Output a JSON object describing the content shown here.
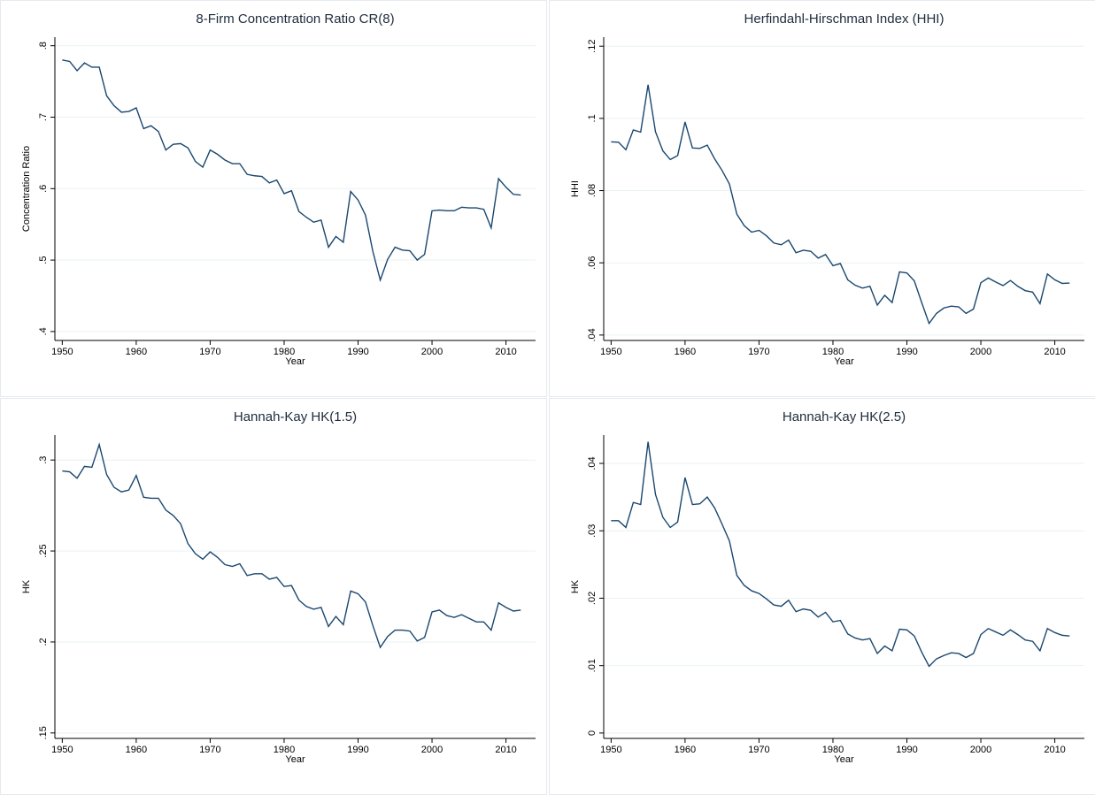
{
  "chart_data": [
    {
      "type": "line",
      "title": "8-Firm Concentration Ratio CR(8)",
      "xlabel": "Year",
      "ylabel": "Concentration Ratio",
      "x": [
        1950,
        1951,
        1952,
        1953,
        1954,
        1955,
        1956,
        1957,
        1958,
        1959,
        1960,
        1961,
        1962,
        1963,
        1964,
        1965,
        1966,
        1967,
        1968,
        1969,
        1970,
        1971,
        1972,
        1973,
        1974,
        1975,
        1976,
        1977,
        1978,
        1979,
        1980,
        1981,
        1982,
        1983,
        1984,
        1985,
        1986,
        1987,
        1988,
        1989,
        1990,
        1991,
        1992,
        1993,
        1994,
        1995,
        1996,
        1997,
        1998,
        1999,
        2000,
        2001,
        2002,
        2003,
        2004,
        2005,
        2006,
        2007,
        2008,
        2009,
        2010,
        2011,
        2012
      ],
      "series": [
        {
          "color": "#1a476f",
          "values": [
            0.78,
            0.778,
            0.765,
            0.776,
            0.77,
            0.77,
            0.73,
            0.716,
            0.707,
            0.708,
            0.713,
            0.684,
            0.688,
            0.68,
            0.654,
            0.662,
            0.663,
            0.657,
            0.638,
            0.63,
            0.654,
            0.648,
            0.64,
            0.635,
            0.635,
            0.62,
            0.618,
            0.617,
            0.608,
            0.612,
            0.593,
            0.597,
            0.568,
            0.56,
            0.553,
            0.556,
            0.518,
            0.533,
            0.525,
            0.596,
            0.584,
            0.563,
            0.512,
            0.472,
            0.501,
            0.518,
            0.514,
            0.513,
            0.5,
            0.508,
            0.569,
            0.57,
            0.569,
            0.569,
            0.574,
            0.573,
            0.573,
            0.571,
            0.545,
            0.614,
            0.602,
            0.592,
            0.591
          ]
        }
      ],
      "xlim": [
        1949,
        2014
      ],
      "xticks": [
        1950,
        1960,
        1970,
        1980,
        1990,
        2000,
        2010
      ],
      "ylim": [
        0.3875,
        0.812
      ],
      "yticks": [
        {
          "value": 0.4,
          "label": ".4"
        },
        {
          "value": 0.5,
          "label": ".5"
        },
        {
          "value": 0.6,
          "label": ".6"
        },
        {
          "value": 0.7,
          "label": ".7"
        },
        {
          "value": 0.8,
          "label": ".8"
        }
      ],
      "grid": true
    },
    {
      "type": "line",
      "title": "Herfindahl-Hirschman Index (HHI)",
      "xlabel": "Year",
      "ylabel": "HHI",
      "x": [
        1950,
        1951,
        1952,
        1953,
        1954,
        1955,
        1956,
        1957,
        1958,
        1959,
        1960,
        1961,
        1962,
        1963,
        1964,
        1965,
        1966,
        1967,
        1968,
        1969,
        1970,
        1971,
        1972,
        1973,
        1974,
        1975,
        1976,
        1977,
        1978,
        1979,
        1980,
        1981,
        1982,
        1983,
        1984,
        1985,
        1986,
        1987,
        1988,
        1989,
        1990,
        1991,
        1992,
        1993,
        1994,
        1995,
        1996,
        1997,
        1998,
        1999,
        2000,
        2001,
        2002,
        2003,
        2004,
        2005,
        2006,
        2007,
        2008,
        2009,
        2010,
        2011,
        2012
      ],
      "series": [
        {
          "color": "#1a476f",
          "values": [
            0.0935,
            0.0934,
            0.0913,
            0.0968,
            0.0962,
            0.1093,
            0.0963,
            0.091,
            0.0886,
            0.0897,
            0.099,
            0.0918,
            0.0917,
            0.0926,
            0.0888,
            0.0856,
            0.0818,
            0.0735,
            0.0703,
            0.0685,
            0.069,
            0.0675,
            0.0655,
            0.065,
            0.0663,
            0.0628,
            0.0635,
            0.0632,
            0.0613,
            0.0623,
            0.0592,
            0.0598,
            0.0553,
            0.0538,
            0.053,
            0.0535,
            0.0483,
            0.051,
            0.049,
            0.0575,
            0.0572,
            0.055,
            0.049,
            0.0432,
            0.046,
            0.0475,
            0.048,
            0.0478,
            0.046,
            0.0472,
            0.0545,
            0.0558,
            0.0547,
            0.0537,
            0.0551,
            0.0535,
            0.0523,
            0.0519,
            0.0487,
            0.0569,
            0.0553,
            0.0543,
            0.0544
          ]
        }
      ],
      "xlim": [
        1949,
        2014
      ],
      "xticks": [
        1950,
        1960,
        1970,
        1980,
        1990,
        2000,
        2010
      ],
      "ylim": [
        0.0385,
        0.1225
      ],
      "yticks": [
        {
          "value": 0.04,
          "label": ".04"
        },
        {
          "value": 0.06,
          "label": ".06"
        },
        {
          "value": 0.08,
          "label": ".08"
        },
        {
          "value": 0.1,
          "label": ".1"
        },
        {
          "value": 0.12,
          "label": ".12"
        }
      ],
      "grid": true
    },
    {
      "type": "line",
      "title": "Hannah-Kay HK(1.5)",
      "xlabel": "Year",
      "ylabel": "HK",
      "x": [
        1950,
        1951,
        1952,
        1953,
        1954,
        1955,
        1956,
        1957,
        1958,
        1959,
        1960,
        1961,
        1962,
        1963,
        1964,
        1965,
        1966,
        1967,
        1968,
        1969,
        1970,
        1971,
        1972,
        1973,
        1974,
        1975,
        1976,
        1977,
        1978,
        1979,
        1980,
        1981,
        1982,
        1983,
        1984,
        1985,
        1986,
        1987,
        1988,
        1989,
        1990,
        1991,
        1992,
        1993,
        1994,
        1995,
        1996,
        1997,
        1998,
        1999,
        2000,
        2001,
        2002,
        2003,
        2004,
        2005,
        2006,
        2007,
        2008,
        2009,
        2010,
        2011,
        2012
      ],
      "series": [
        {
          "color": "#1a476f",
          "values": [
            0.294,
            0.2935,
            0.29,
            0.2965,
            0.296,
            0.3085,
            0.292,
            0.285,
            0.2825,
            0.2835,
            0.2915,
            0.2795,
            0.279,
            0.279,
            0.2725,
            0.2695,
            0.265,
            0.254,
            0.2485,
            0.2455,
            0.2495,
            0.2465,
            0.2425,
            0.2415,
            0.243,
            0.2365,
            0.2375,
            0.2375,
            0.2345,
            0.2355,
            0.2305,
            0.231,
            0.223,
            0.2195,
            0.218,
            0.219,
            0.2085,
            0.214,
            0.2095,
            0.228,
            0.2265,
            0.222,
            0.209,
            0.197,
            0.203,
            0.2065,
            0.2065,
            0.206,
            0.2005,
            0.2025,
            0.2165,
            0.2175,
            0.2145,
            0.2135,
            0.215,
            0.213,
            0.211,
            0.211,
            0.2065,
            0.2215,
            0.219,
            0.217,
            0.2175
          ]
        }
      ],
      "xlim": [
        1949,
        2014
      ],
      "xticks": [
        1950,
        1960,
        1970,
        1980,
        1990,
        2000,
        2010
      ],
      "ylim": [
        0.147,
        0.3137
      ],
      "yticks": [
        {
          "value": 0.15,
          "label": ".15"
        },
        {
          "value": 0.2,
          "label": ".2"
        },
        {
          "value": 0.25,
          "label": ".25"
        },
        {
          "value": 0.3,
          "label": ".3"
        }
      ],
      "grid": true
    },
    {
      "type": "line",
      "title": "Hannah-Kay HK(2.5)",
      "xlabel": "Year",
      "ylabel": "HK",
      "x": [
        1950,
        1951,
        1952,
        1953,
        1954,
        1955,
        1956,
        1957,
        1958,
        1959,
        1960,
        1961,
        1962,
        1963,
        1964,
        1965,
        1966,
        1967,
        1968,
        1969,
        1970,
        1971,
        1972,
        1973,
        1974,
        1975,
        1976,
        1977,
        1978,
        1979,
        1980,
        1981,
        1982,
        1983,
        1984,
        1985,
        1986,
        1987,
        1988,
        1989,
        1990,
        1991,
        1992,
        1993,
        1994,
        1995,
        1996,
        1997,
        1998,
        1999,
        2000,
        2001,
        2002,
        2003,
        2004,
        2005,
        2006,
        2007,
        2008,
        2009,
        2010,
        2011,
        2012
      ],
      "series": [
        {
          "color": "#1a476f",
          "values": [
            0.0315,
            0.0315,
            0.0305,
            0.0342,
            0.0339,
            0.0432,
            0.0354,
            0.032,
            0.0305,
            0.0313,
            0.0379,
            0.0339,
            0.034,
            0.035,
            0.0334,
            0.031,
            0.0285,
            0.0234,
            0.0219,
            0.0211,
            0.0207,
            0.0199,
            0.019,
            0.0188,
            0.0197,
            0.018,
            0.0184,
            0.0182,
            0.0172,
            0.0179,
            0.0165,
            0.0167,
            0.0147,
            0.0141,
            0.0138,
            0.014,
            0.0118,
            0.0129,
            0.0122,
            0.0154,
            0.0153,
            0.0144,
            0.012,
            0.0099,
            0.011,
            0.0115,
            0.0119,
            0.0118,
            0.0112,
            0.0118,
            0.0146,
            0.0155,
            0.015,
            0.0145,
            0.0153,
            0.0146,
            0.0138,
            0.0136,
            0.0122,
            0.0155,
            0.0149,
            0.0145,
            0.0144
          ]
        }
      ],
      "xlim": [
        1949,
        2014
      ],
      "xticks": [
        1950,
        1960,
        1970,
        1980,
        1990,
        2000,
        2010
      ],
      "ylim": [
        -0.0008,
        0.0442
      ],
      "yticks": [
        0,
        {
          "value": 0.01,
          "label": ".01"
        },
        {
          "value": 0.02,
          "label": ".02"
        },
        {
          "value": 0.03,
          "label": ".03"
        },
        {
          "value": 0.04,
          "label": ".04"
        }
      ],
      "grid": true
    }
  ]
}
